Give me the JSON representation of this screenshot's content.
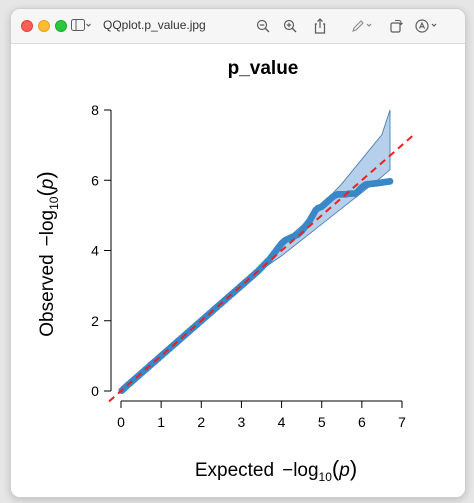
{
  "window": {
    "title": "QQplot.p_value.jpg",
    "toolbar_icons": [
      "sidebar-icon",
      "chevron-down-icon",
      "zoom-out-icon",
      "zoom-in-icon",
      "share-icon",
      "markup-pen-icon",
      "chevron-down-icon",
      "rotate-icon",
      "annotate-icon",
      "chevron-down-icon"
    ]
  },
  "chart_data": {
    "type": "scatter",
    "title": "p_value",
    "xlabel": "Expected",
    "ylabel": "Observed",
    "axis_label_math": {
      "minus": "−",
      "log": "log",
      "sub": "10",
      "open": "(",
      "var": "p",
      "close": ")"
    },
    "xlim": [
      0,
      7
    ],
    "ylim": [
      0,
      8
    ],
    "xticks": [
      "0",
      "1",
      "2",
      "3",
      "4",
      "5",
      "6",
      "7"
    ],
    "yticks": [
      "0",
      "2",
      "4",
      "6",
      "8"
    ],
    "point_color": "#3a87c8",
    "reference_line_color": "#e8231f",
    "band_color": "#a9c8e8",
    "band_edge_color": "#4a7fb5",
    "points": [
      [
        0.02,
        0.01
      ],
      [
        0.1,
        0.1
      ],
      [
        0.3,
        0.3
      ],
      [
        0.6,
        0.6
      ],
      [
        1.0,
        1.0
      ],
      [
        1.5,
        1.5
      ],
      [
        2.0,
        2.0
      ],
      [
        2.5,
        2.5
      ],
      [
        3.0,
        3.0
      ],
      [
        3.4,
        3.4
      ],
      [
        3.7,
        3.75
      ],
      [
        3.9,
        4.05
      ],
      [
        4.0,
        4.2
      ],
      [
        4.1,
        4.3
      ],
      [
        4.2,
        4.35
      ],
      [
        4.3,
        4.4
      ],
      [
        4.4,
        4.45
      ],
      [
        4.5,
        4.55
      ],
      [
        4.6,
        4.7
      ],
      [
        4.7,
        4.85
      ],
      [
        4.75,
        4.95
      ],
      [
        4.8,
        5.05
      ],
      [
        4.85,
        5.15
      ],
      [
        4.9,
        5.2
      ],
      [
        5.0,
        5.25
      ],
      [
        5.1,
        5.35
      ],
      [
        5.2,
        5.45
      ],
      [
        5.3,
        5.55
      ],
      [
        5.4,
        5.6
      ],
      [
        5.5,
        5.6
      ],
      [
        5.6,
        5.6
      ],
      [
        5.7,
        5.62
      ],
      [
        5.85,
        5.62
      ],
      [
        6.0,
        5.8
      ],
      [
        6.1,
        5.88
      ],
      [
        6.4,
        5.92
      ],
      [
        6.7,
        5.97
      ]
    ],
    "band_upper": [
      [
        3.5,
        3.55
      ],
      [
        4.0,
        4.2
      ],
      [
        4.5,
        4.7
      ],
      [
        5.0,
        5.3
      ],
      [
        5.5,
        5.9
      ],
      [
        6.0,
        6.6
      ],
      [
        6.5,
        7.3
      ],
      [
        6.7,
        8.0
      ]
    ],
    "band_lower": [
      [
        3.5,
        3.45
      ],
      [
        4.0,
        3.85
      ],
      [
        4.5,
        4.3
      ],
      [
        5.0,
        4.75
      ],
      [
        5.5,
        5.2
      ],
      [
        6.0,
        5.65
      ],
      [
        6.5,
        6.1
      ],
      [
        6.7,
        6.3
      ]
    ]
  }
}
